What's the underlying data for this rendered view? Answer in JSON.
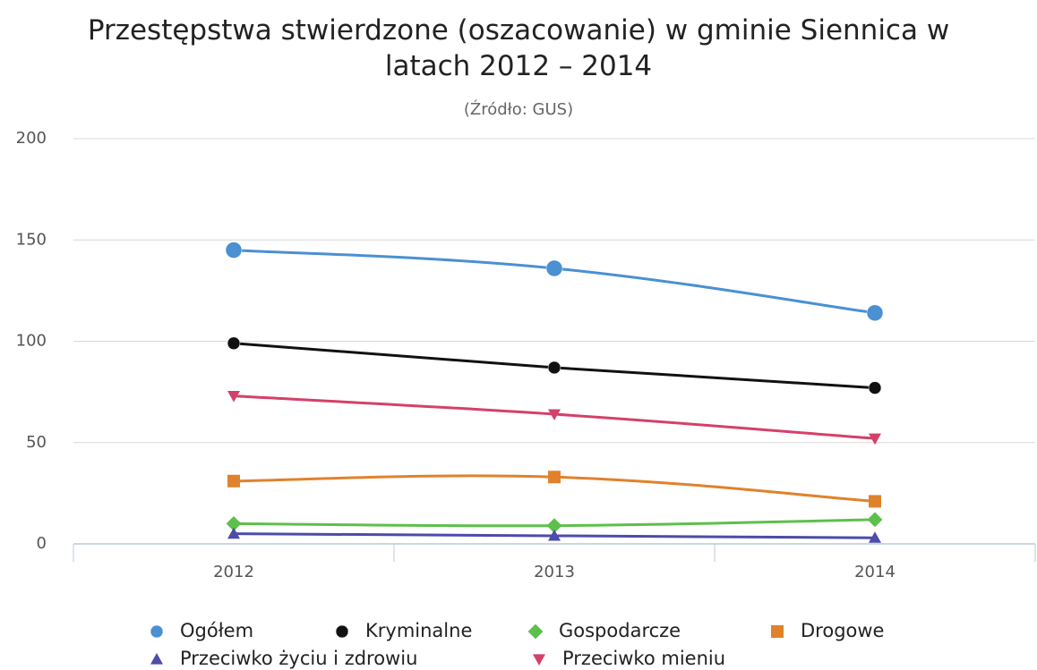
{
  "chart_data": {
    "type": "line",
    "title": "Przestępstwa stwierdzone (oszacowanie) w gminie Siennica w latach 2012 – 2014",
    "subtitle": "(Źródło: GUS)",
    "categories": [
      "2012",
      "2013",
      "2014"
    ],
    "series": [
      {
        "name": "Ogółem",
        "color": "#4a90d2",
        "marker": "circle",
        "values": [
          145,
          136,
          114
        ]
      },
      {
        "name": "Kryminalne",
        "color": "#111111",
        "marker": "circle",
        "values": [
          99,
          87,
          77
        ]
      },
      {
        "name": "Gospodarcze",
        "color": "#5cc04a",
        "marker": "diamond",
        "values": [
          10,
          9,
          12
        ]
      },
      {
        "name": "Drogowe",
        "color": "#e0822c",
        "marker": "square",
        "values": [
          31,
          33,
          21
        ]
      },
      {
        "name": "Przeciwko życiu i zdrowiu",
        "color": "#4c4caa",
        "marker": "triangle",
        "values": [
          5,
          4,
          3
        ]
      },
      {
        "name": "Przeciwko mieniu",
        "color": "#d3416a",
        "marker": "triangle-down",
        "values": [
          73,
          64,
          52
        ]
      }
    ],
    "ylim": [
      0,
      200
    ],
    "yticks": [
      0,
      50,
      100,
      150,
      200
    ],
    "grid": true
  }
}
